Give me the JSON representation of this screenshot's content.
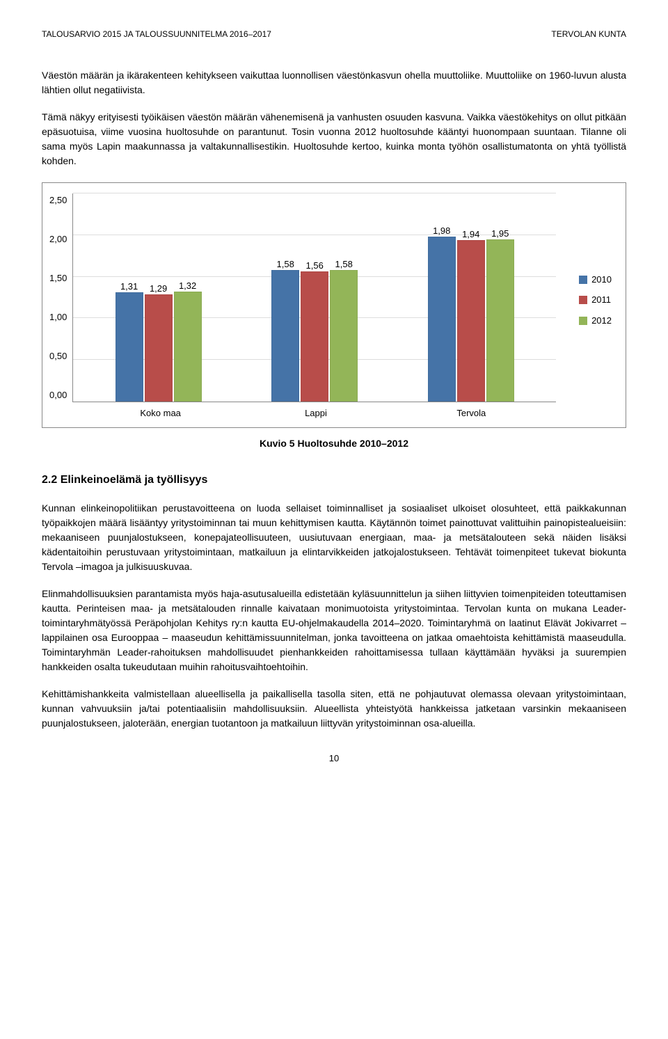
{
  "header": {
    "left": "TALOUSARVIO 2015 JA TALOUSSUUNNITELMA 2016–2017",
    "right": "TERVOLAN KUNTA"
  },
  "paragraphs": {
    "p1": "Väestön määrän ja ikärakenteen kehitykseen vaikuttaa luonnollisen väestönkasvun ohella muuttoliike. Muuttoliike on 1960-luvun alusta lähtien ollut negatiivista.",
    "p2": "Tämä näkyy erityisesti työikäisen väestön määrän vähenemisenä ja vanhusten osuuden kasvuna. Vaikka väestökehitys on ollut pitkään epäsuotuisa, viime vuosina huoltosuhde on parantunut. Tosin vuonna 2012 huoltosuhde kääntyi huonompaan suuntaan. Tilanne oli sama myös Lapin maakunnassa ja valtakunnallisestikin. Huoltosuhde kertoo, kuinka monta työhön osallistumatonta on yhtä työllistä kohden.",
    "p3": "Kunnan elinkeinopolitiikan perustavoitteena on luoda sellaiset toiminnalliset ja sosiaaliset ulkoiset olosuhteet, että paikkakunnan työpaikkojen määrä lisääntyy yritystoiminnan tai muun kehittymisen kautta. Käytännön toimet painottuvat valittuihin painopistealueisiin: mekaaniseen puunjalostukseen, konepajateollisuuteen, uusiutuvaan energiaan, maa- ja metsätalouteen sekä näiden lisäksi kädentaitoihin perustuvaan yritystoimintaan, matkailuun ja elintarvikkeiden jatkojalostukseen. Tehtävät toimenpiteet tukevat biokunta Tervola –imagoa ja julkisuuskuvaa.",
    "p4": "Elinmahdollisuuksien parantamista myös haja-asutusalueilla edistetään kyläsuunnittelun ja siihen liittyvien toimenpiteiden toteuttamisen kautta. Perinteisen maa- ja metsätalouden rinnalle kaivataan monimuotoista yritystoimintaa. Tervolan kunta on mukana Leader-toimintaryhmätyössä Peräpohjolan Kehitys ry:n kautta EU-ohjelmakaudella 2014–2020. Toimintaryhmä on laatinut Elävät Jokivarret – lappilainen osa Eurooppaa – maaseudun kehittämissuunnitelman, jonka tavoitteena on jatkaa omaehtoista kehittämistä maaseudulla. Toimintaryhmän Leader-rahoituksen mahdollisuudet pienhankkeiden rahoittamisessa tullaan käyttämään hyväksi ja suurempien hankkeiden osalta tukeudutaan muihin rahoitusvaihtoehtoihin.",
    "p5": "Kehittämishankkeita valmistellaan alueellisella ja paikallisella tasolla siten, että ne pohjautuvat olemassa olevaan yritystoimintaan, kunnan vahvuuksiin ja/tai potentiaalisiin mahdollisuuksiin. Alueellista yhteistyötä hankkeissa jatketaan varsinkin mekaaniseen puunjalostukseen, jaloterään, energian tuotantoon ja matkailuun liittyvän yritystoiminnan osa-alueilla."
  },
  "chart": {
    "type": "bar",
    "ylim": [
      0,
      2.5
    ],
    "yticks": [
      "0,00",
      "0,50",
      "1,00",
      "1,50",
      "2,00",
      "2,50"
    ],
    "categories": [
      "Koko maa",
      "Lappi",
      "Tervola"
    ],
    "series": [
      {
        "name": "2010",
        "color": "#4573a7",
        "values": [
          1.31,
          1.58,
          1.98
        ],
        "labels": [
          "1,31",
          "1,58",
          "1,98"
        ]
      },
      {
        "name": "2011",
        "color": "#b84d4a",
        "values": [
          1.29,
          1.56,
          1.94
        ],
        "labels": [
          "1,29",
          "1,56",
          "1,94"
        ]
      },
      {
        "name": "2012",
        "color": "#93b558",
        "values": [
          1.32,
          1.58,
          1.95
        ],
        "labels": [
          "1,32",
          "1,58",
          "1,95"
        ]
      }
    ],
    "caption": "Kuvio 5 Huoltosuhde 2010–2012",
    "gridline_color": "#dddddd",
    "background": "#ffffff"
  },
  "section": {
    "heading": "2.2   Elinkeinoelämä ja työllisyys"
  },
  "page_number": "10"
}
